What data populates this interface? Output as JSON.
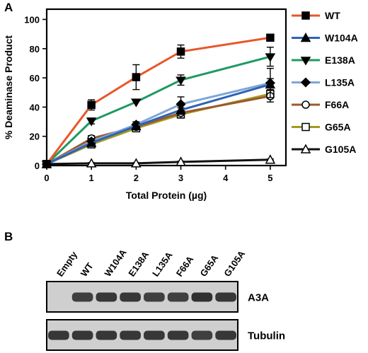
{
  "panel_a_label": "A",
  "panel_b_label": "B",
  "chart_data": {
    "type": "line",
    "xlabel": "Total Protein (µg)",
    "ylabel": "% Deaminase Product",
    "x_ticks": [
      0,
      1,
      2,
      3,
      4,
      5
    ],
    "y_ticks": [
      0,
      20,
      40,
      60,
      80,
      100
    ],
    "xlim": [
      0,
      5.35
    ],
    "ylim": [
      0,
      107
    ],
    "legend_position": "right",
    "x": [
      0,
      1,
      2,
      3,
      5
    ],
    "series": [
      {
        "name": "WT",
        "color": "#e8572b",
        "marker": "square-filled",
        "values": [
          1,
          41.5,
          60.5,
          78,
          87.5
        ],
        "errors": [
          0,
          3.5,
          8.5,
          4.5,
          0
        ]
      },
      {
        "name": "W104A",
        "color": "#2c63b7",
        "marker": "triangle-up-filled",
        "values": [
          1,
          15.5,
          27,
          38,
          55.5
        ],
        "errors": [
          0,
          2,
          2,
          3,
          4
        ]
      },
      {
        "name": "E138A",
        "color": "#1f9a62",
        "marker": "triangle-down-filled",
        "values": [
          1,
          30.5,
          43.5,
          58.5,
          74.5
        ],
        "errors": [
          0,
          2,
          0,
          3.5,
          6.5
        ]
      },
      {
        "name": "L135A",
        "color": "#7fa6d6",
        "marker": "diamond-filled",
        "values": [
          1,
          16.5,
          28,
          42,
          56.5
        ],
        "errors": [
          0,
          2,
          2,
          5,
          10
        ]
      },
      {
        "name": "F66A",
        "color": "#9b5a2e",
        "marker": "circle-open",
        "values": [
          1,
          18.5,
          26.5,
          36,
          47.5
        ],
        "errors": [
          0,
          2,
          2,
          3.5,
          4
        ]
      },
      {
        "name": "G65A",
        "color": "#a59a1e",
        "marker": "square-open",
        "values": [
          1,
          14.5,
          25.5,
          35,
          49
        ],
        "errors": [
          0,
          2,
          2,
          2.5,
          3
        ]
      },
      {
        "name": "G105A",
        "color": "#111111",
        "marker": "triangle-up-open",
        "values": [
          1,
          1.5,
          1.5,
          2.5,
          4
        ],
        "errors": [
          0,
          0.5,
          0.5,
          0.5,
          0.5
        ]
      }
    ]
  },
  "blot": {
    "lanes": [
      "Empty",
      "WT",
      "W104A",
      "E138A",
      "L135A",
      "F66A",
      "G65A",
      "G105A"
    ],
    "rows": [
      {
        "label": "A3A",
        "band_intensity": [
          0,
          0.85,
          0.9,
          0.9,
          0.85,
          0.85,
          0.95,
          0.9
        ]
      },
      {
        "label": "Tubulin",
        "band_intensity": [
          0.9,
          0.9,
          0.9,
          0.9,
          0.9,
          0.9,
          0.85,
          0.9
        ]
      }
    ]
  }
}
